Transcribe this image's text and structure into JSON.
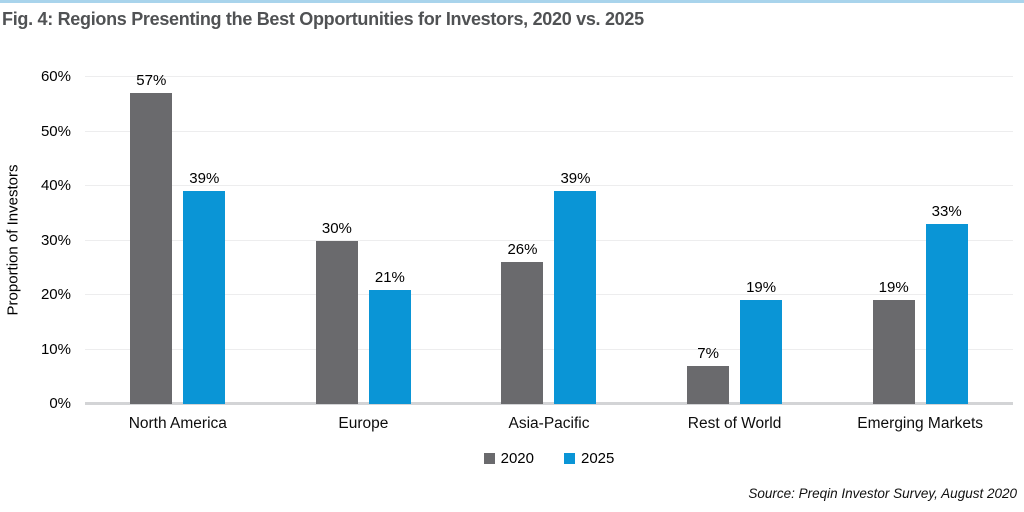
{
  "title": "Fig. 4: Regions Presenting the Best Opportunities for Investors, 2020 vs. 2025",
  "source": "Source: Preqin Investor Survey, August 2020",
  "accent_color": "#a9d4ec",
  "chart_data": {
    "type": "bar",
    "title": "Fig. 4: Regions Presenting the Best Opportunities for Investors, 2020 vs. 2025",
    "categories": [
      "North America",
      "Europe",
      "Asia-Pacific",
      "Rest of World",
      "Emerging Markets"
    ],
    "series": [
      {
        "name": "2020",
        "color": "#6a6a6d",
        "values": [
          57,
          30,
          26,
          7,
          19
        ]
      },
      {
        "name": "2025",
        "color": "#0a95d6",
        "values": [
          39,
          21,
          39,
          19,
          33
        ]
      }
    ],
    "xlabel": "",
    "ylabel": "Proportion of Investors",
    "ylim": [
      0,
      60
    ],
    "ytick_step": 10,
    "ytick_suffix": "%",
    "value_suffix": "%",
    "grid": true,
    "gridline_color": "#ededee",
    "baseline_color": "#d3d4d6",
    "legend_position": "bottom-center"
  }
}
